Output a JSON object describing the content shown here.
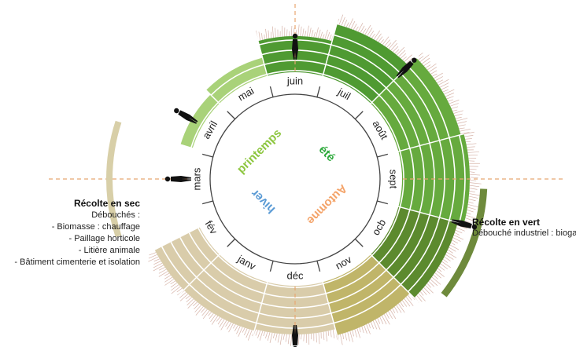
{
  "months": [
    "janv",
    "fév",
    "mars",
    "avril",
    "mai",
    "juin",
    "juil",
    "août",
    "sept",
    "ocb",
    "nov",
    "déc"
  ],
  "seasons": {
    "spring": {
      "label": "printemps",
      "color": "#8dc63f"
    },
    "summer": {
      "label": "été",
      "color": "#2eaa3c"
    },
    "autumn": {
      "label": "Automne",
      "color": "#f4a46a"
    },
    "winter": {
      "label": "hiver",
      "color": "#5b9bd5"
    }
  },
  "dry_harvest": {
    "title": "Récolte en sec",
    "subtitle": "Débouchés :",
    "items": [
      "- Biomasse : chauffage",
      "- Paillage horticole",
      "- Litière animale",
      "- Bâtiment cimenterie et isolation"
    ],
    "color": "#d8cfa8"
  },
  "green_harvest": {
    "title": "Récolte en vert",
    "subtitle": "Débouché industriel : biogaz",
    "color": "#6e8a3c"
  },
  "colors": {
    "spring_fill": "#a9d279",
    "summer_fill": "#4f9a32",
    "late_summer_fill": "#66aa3e",
    "autumn_fill": "#c0b569",
    "winter_fill": "#d9ccaa",
    "dashed_axis": "#e8a772",
    "grass_fringe": "#d6b3a8"
  }
}
